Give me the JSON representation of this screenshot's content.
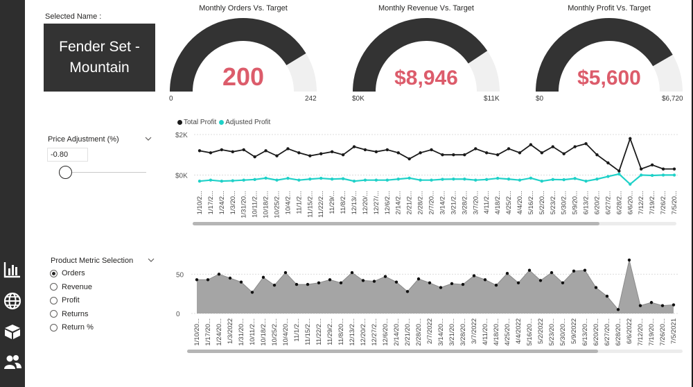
{
  "sidebar": {
    "items": [
      {
        "icon": "bar-chart-icon"
      },
      {
        "icon": "globe-icon"
      },
      {
        "icon": "box-icon"
      },
      {
        "icon": "users-icon"
      }
    ]
  },
  "selected_name": {
    "label": "Selected Name :",
    "value": "Fender Set - Mountain"
  },
  "gauges": [
    {
      "title": "Monthly Orders Vs. Target",
      "value_label": "200",
      "min_label": "0",
      "max_label": "242",
      "fill_fraction": 0.826,
      "fill_color": "#333333",
      "track_color": "#f0f0f0",
      "value_color": "#dc5c6b"
    },
    {
      "title": "Monthly Revenue Vs. Target",
      "value_label": "$8,946",
      "min_label": "$0K",
      "max_label": "$11K",
      "fill_fraction": 0.813,
      "fill_color": "#333333",
      "track_color": "#f0f0f0",
      "value_color": "#dc5c6b"
    },
    {
      "title": "Monthly Profit Vs. Target",
      "value_label": "$5,600",
      "min_label": "$0",
      "max_label": "$6,720",
      "fill_fraction": 0.833,
      "fill_color": "#333333",
      "track_color": "#f0f0f0",
      "value_color": "#dc5c6b"
    }
  ],
  "price_adjustment": {
    "label": "Price Adjustment (%)",
    "value": "-0.80"
  },
  "product_metric": {
    "label": "Product Metric Selection",
    "options": [
      "Orders",
      "Revenue",
      "Profit",
      "Returns",
      "Return %"
    ],
    "selected": "Orders"
  },
  "chart_data": [
    {
      "type": "line",
      "legend": [
        "Total Profit",
        "Adjusted Profit"
      ],
      "legend_position": "top-left",
      "y_ticks": [
        "$2K",
        "$0K"
      ],
      "y_tick_values": [
        2000,
        0
      ],
      "ylim": [
        -500,
        2000
      ],
      "x_tick_labels": [
        "1/10/2...",
        "1/17/2...",
        "1/24/2...",
        "1/3/20...",
        "1/31/20...",
        "10/11/2...",
        "10/18/2...",
        "10/25/2...",
        "10/4/2...",
        "11/1/2...",
        "11/15/2...",
        "11/22/2...",
        "11/29/...",
        "11/8/2...",
        "12/13/...",
        "12/20/...",
        "12/27/...",
        "12/6/2...",
        "2/14/2...",
        "2/21/2...",
        "2/28/2...",
        "2/7/20...",
        "3/14/2...",
        "3/21/2...",
        "3/28/2...",
        "3/7/20...",
        "4/11/2...",
        "4/18/2...",
        "4/25/2...",
        "4/4/20...",
        "5/16/2...",
        "5/2/20...",
        "5/23/2...",
        "5/30/2...",
        "5/9/20...",
        "6/13/2...",
        "6/20/2...",
        "6/27/2...",
        "6/28/2...",
        "6/6/20...",
        "7/12/2...",
        "7/19/2...",
        "7/26/2...",
        "7/5/20..."
      ],
      "series": [
        {
          "name": "Total Profit",
          "color": "#1a1a1a",
          "values": [
            1200,
            1100,
            1250,
            1150,
            1250,
            900,
            1200,
            950,
            1300,
            1100,
            950,
            1050,
            1150,
            1000,
            1400,
            1250,
            1150,
            1250,
            1100,
            800,
            1100,
            1250,
            1000,
            1000,
            1000,
            1300,
            1100,
            1000,
            1300,
            1100,
            1500,
            1100,
            1400,
            1050,
            1400,
            1550,
            1000,
            600,
            200,
            1800,
            300,
            500,
            300,
            300
          ]
        },
        {
          "name": "Adjusted Profit",
          "color": "#1fd1c8",
          "values": [
            -300,
            -250,
            -300,
            -280,
            -250,
            -220,
            -150,
            -250,
            -160,
            -250,
            -200,
            -160,
            -200,
            -180,
            -300,
            -250,
            -250,
            -250,
            -200,
            -150,
            -250,
            -250,
            -210,
            -200,
            -200,
            -250,
            -220,
            -160,
            -200,
            -250,
            -150,
            -300,
            -220,
            -230,
            -170,
            -300,
            -200,
            -70,
            50,
            -450,
            0,
            -20,
            0,
            0
          ]
        }
      ]
    },
    {
      "type": "area",
      "y_ticks": [
        "50",
        "0"
      ],
      "y_tick_values": [
        50,
        0
      ],
      "ylim": [
        0,
        75
      ],
      "fill_color": "#a5a5a5",
      "x_tick_labels": [
        "1/10/20...",
        "1/17/20...",
        "1/24/20...",
        "1/3/2022",
        "1/31/20...",
        "10/11/2...",
        "10/18/2...",
        "10/25/2...",
        "10/4/20...",
        "11/1/2...",
        "11/15/2...",
        "11/22/2...",
        "11/29/2...",
        "11/8/20...",
        "12/13/2...",
        "12/20/2...",
        "12/27/2...",
        "12/6/20...",
        "2/14/20...",
        "2/21/20...",
        "2/28/20...",
        "2/7/2022",
        "3/14/20...",
        "3/21/20...",
        "3/28/20...",
        "3/7/2022",
        "4/11/20...",
        "4/18/20...",
        "4/25/20...",
        "4/4/2022",
        "5/16/20...",
        "5/2/2022",
        "5/23/20...",
        "5/30/20...",
        "5/9/2022",
        "6/13/20...",
        "6/20/20...",
        "6/27/20...",
        "6/28/20...",
        "6/6/2022",
        "7/12/20...",
        "7/19/20...",
        "7/26/20...",
        "7/5/2021"
      ],
      "series": [
        {
          "name": "Orders",
          "values": [
            43,
            43,
            50,
            45,
            40,
            27,
            46,
            36,
            52,
            37,
            37,
            39,
            43,
            39,
            52,
            42,
            41,
            47,
            40,
            28,
            44,
            39,
            33,
            38,
            37,
            48,
            43,
            36,
            51,
            39,
            55,
            42,
            52,
            39,
            54,
            55,
            33,
            22,
            5,
            68,
            10,
            14,
            10,
            11
          ]
        }
      ]
    }
  ]
}
